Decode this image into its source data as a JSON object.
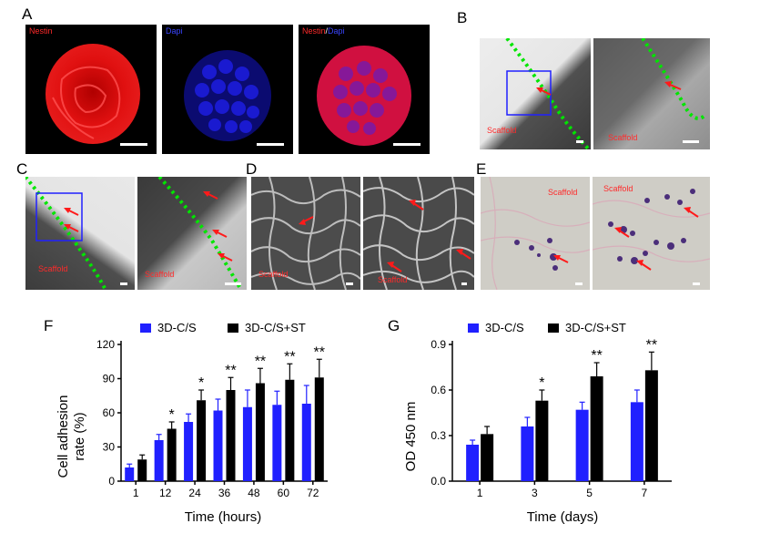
{
  "panels": {
    "A": {
      "letter": "A",
      "label1": "Nestin",
      "label2": "Dapi",
      "label3a": "Nestin",
      "label3sep": "/",
      "label3b": "Dapi"
    },
    "B": {
      "letter": "B",
      "scaffold": "Scaffold"
    },
    "C": {
      "letter": "C",
      "scaffold": "Scaffold"
    },
    "D": {
      "letter": "D",
      "scaffold": "Scaffold"
    },
    "E": {
      "letter": "E",
      "scaffold": "Scaffold"
    },
    "F": {
      "letter": "F"
    },
    "G": {
      "letter": "G"
    }
  },
  "colors": {
    "red": "#ff2a2a",
    "blue": "#2020ff",
    "black": "#000000",
    "green": "#00e600"
  },
  "chart_data": [
    {
      "type": "bar",
      "panel": "F",
      "categories": [
        "1",
        "12",
        "24",
        "36",
        "48",
        "60",
        "72"
      ],
      "series": [
        {
          "name": "3D-C/S",
          "color": "#2020ff",
          "values": [
            12,
            36,
            52,
            62,
            65,
            67,
            68
          ],
          "errors": [
            3,
            5,
            7,
            10,
            15,
            12,
            16
          ]
        },
        {
          "name": "3D-C/S+ST",
          "color": "#000000",
          "values": [
            19,
            46,
            71,
            80,
            86,
            89,
            91
          ],
          "errors": [
            4,
            6,
            9,
            11,
            13,
            14,
            16
          ]
        }
      ],
      "significance": [
        "",
        "*",
        "*",
        "**",
        "**",
        "**",
        "**"
      ],
      "xlabel": "Time (hours)",
      "ylabel_line1": "Cell adhesion",
      "ylabel_line2": "rate (%)",
      "ylim": [
        0,
        120
      ],
      "yticks": [
        "0",
        "30",
        "60",
        "90",
        "120"
      ],
      "legend": "top"
    },
    {
      "type": "bar",
      "panel": "G",
      "categories": [
        "1",
        "3",
        "5",
        "7"
      ],
      "series": [
        {
          "name": "3D-C/S",
          "color": "#2020ff",
          "values": [
            0.24,
            0.36,
            0.47,
            0.52
          ],
          "errors": [
            0.03,
            0.06,
            0.05,
            0.08
          ]
        },
        {
          "name": "3D-C/S+ST",
          "color": "#000000",
          "values": [
            0.31,
            0.53,
            0.69,
            0.73
          ],
          "errors": [
            0.05,
            0.07,
            0.09,
            0.12
          ]
        }
      ],
      "significance": [
        "",
        "*",
        "**",
        "**"
      ],
      "xlabel": "Time (days)",
      "ylabel": "OD 450 nm",
      "ylim": [
        0,
        0.9
      ],
      "yticks": [
        "0.0",
        "0.3",
        "0.6",
        "0.9"
      ],
      "legend": "top"
    }
  ]
}
